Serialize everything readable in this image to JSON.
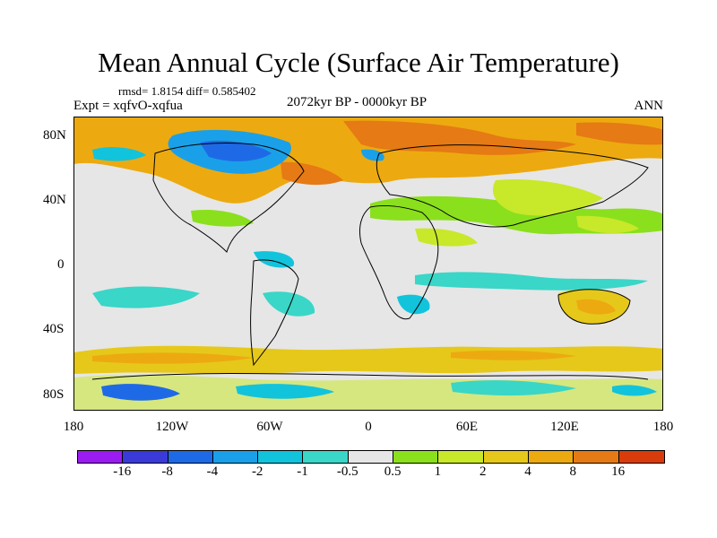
{
  "title": "Mean Annual Cycle (Surface Air Temperature)",
  "stats": "rmsd= 1.8154 diff= 0.585402",
  "experiment": "Expt = xqfvO-xqfua",
  "period": "2072kyr BP - 0000kyr BP",
  "season": "ANN",
  "y_axis": {
    "labels": [
      "80N",
      "40N",
      "0",
      "40S",
      "80S"
    ]
  },
  "x_axis": {
    "labels": [
      "180",
      "120W",
      "60W",
      "0",
      "60E",
      "120E",
      "180"
    ]
  },
  "colorbar": {
    "colors": [
      "#9a1cf0",
      "#3a3ad8",
      "#1e6ae6",
      "#1aa0e8",
      "#12c3dc",
      "#3ad6c8",
      "#e6e6e6",
      "#8ae01c",
      "#c8e82a",
      "#e6c81a",
      "#ecaa10",
      "#e67a14",
      "#d93c0c"
    ],
    "labels": [
      "-16",
      "-8",
      "-4",
      "-2",
      "-1",
      "-0.5",
      "0.5",
      "1",
      "2",
      "4",
      "8",
      "16"
    ]
  }
}
